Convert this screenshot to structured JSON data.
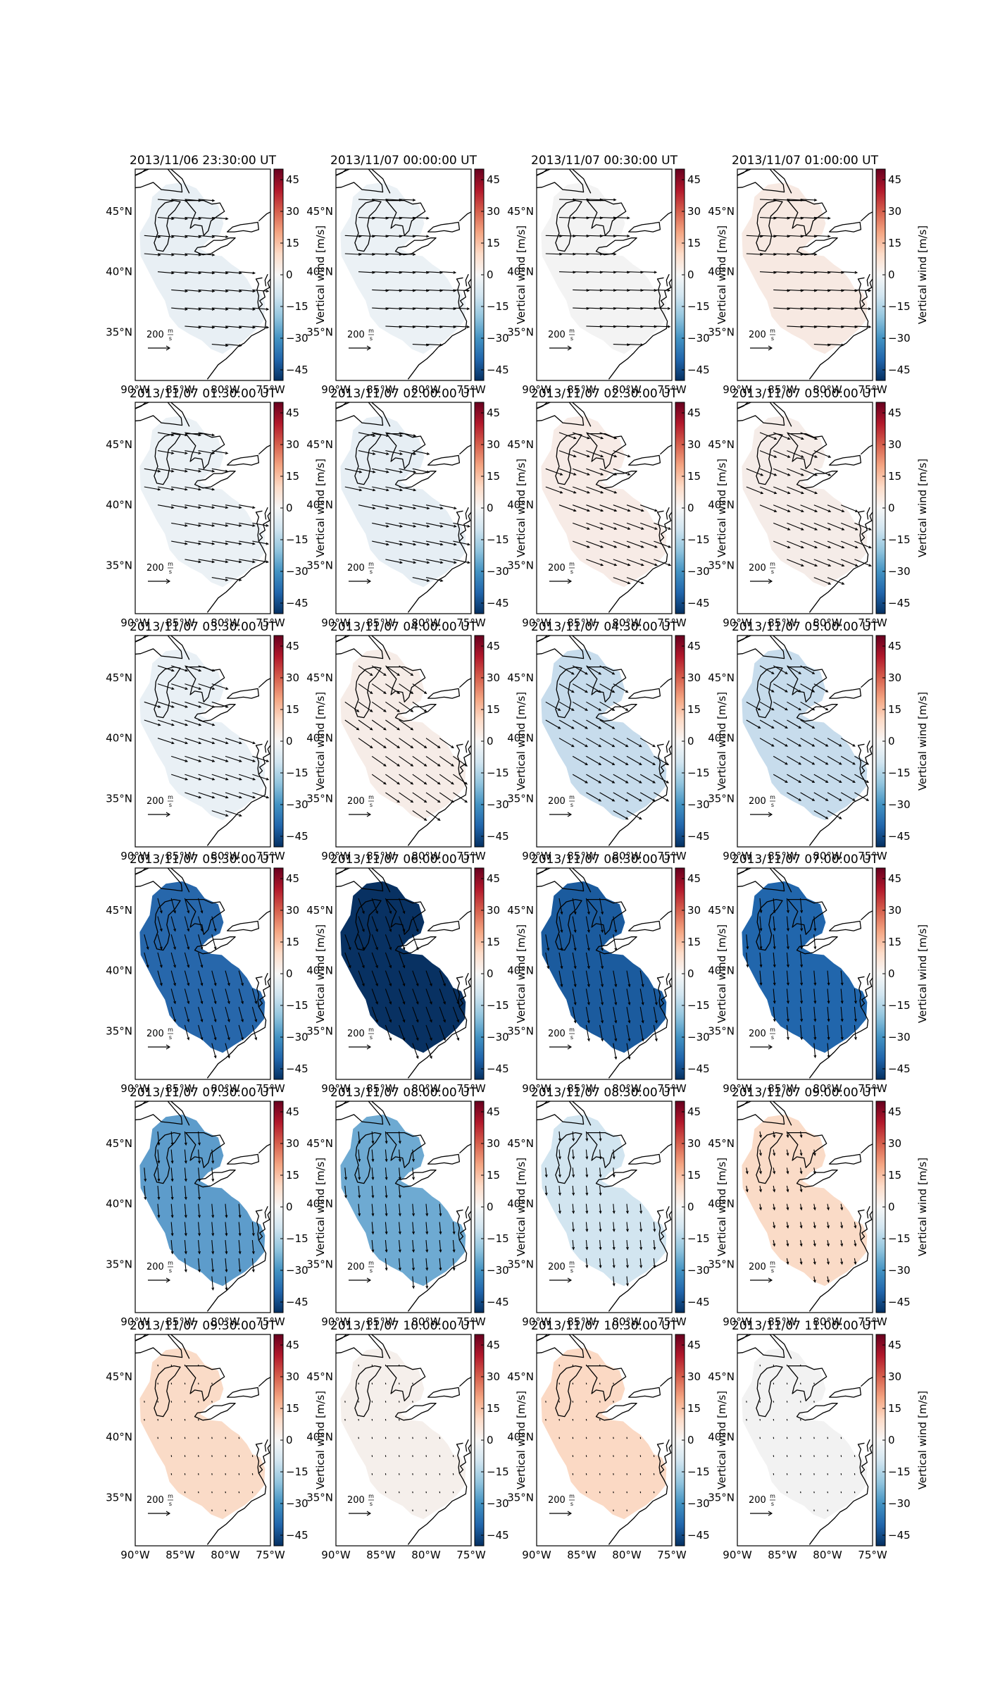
{
  "figure": {
    "panels": [
      {
        "timestamp": "2013/11/06 23:30:00 UT",
        "vertical_wind": -4,
        "fill": "#e8eff4",
        "vector_angle_deg": 5,
        "vector_scale": 0.95
      },
      {
        "timestamp": "2013/11/07 00:00:00 UT",
        "vertical_wind": -3,
        "fill": "#ebf1f5",
        "vector_angle_deg": 3,
        "vector_scale": 0.95
      },
      {
        "timestamp": "2013/11/07 00:30:00 UT",
        "vertical_wind": 0,
        "fill": "#f3f3f3",
        "vector_angle_deg": 2,
        "vector_scale": 0.95
      },
      {
        "timestamp": "2013/11/07 01:00:00 UT",
        "vertical_wind": 3,
        "fill": "#f7e9e2",
        "vector_angle_deg": 3,
        "vector_scale": 0.95
      },
      {
        "timestamp": "2013/11/07 01:30:00 UT",
        "vertical_wind": -3,
        "fill": "#ebf1f5",
        "vector_angle_deg": 10,
        "vector_scale": 0.95
      },
      {
        "timestamp": "2013/11/07 02:00:00 UT",
        "vertical_wind": -4,
        "fill": "#e6eef4",
        "vector_angle_deg": 12,
        "vector_scale": 1.0
      },
      {
        "timestamp": "2013/11/07 02:30:00 UT",
        "vertical_wind": 3,
        "fill": "#f7ebe6",
        "vector_angle_deg": 20,
        "vector_scale": 1.05
      },
      {
        "timestamp": "2013/11/07 03:00:00 UT",
        "vertical_wind": 2,
        "fill": "#f5ece8",
        "vector_angle_deg": 22,
        "vector_scale": 1.05
      },
      {
        "timestamp": "2013/11/07 03:30:00 UT",
        "vertical_wind": -3,
        "fill": "#e9f0f5",
        "vector_angle_deg": 18,
        "vector_scale": 1.0
      },
      {
        "timestamp": "2013/11/07 04:00:00 UT",
        "vertical_wind": 2,
        "fill": "#f6ece7",
        "vector_angle_deg": 35,
        "vector_scale": 1.0
      },
      {
        "timestamp": "2013/11/07 04:30:00 UT",
        "vertical_wind": -10,
        "fill": "#c7dcec",
        "vector_angle_deg": 30,
        "vector_scale": 1.0
      },
      {
        "timestamp": "2013/11/07 05:00:00 UT",
        "vertical_wind": -10,
        "fill": "#c7dcec",
        "vector_angle_deg": 30,
        "vector_scale": 0.95
      },
      {
        "timestamp": "2013/11/07 05:30:00 UT",
        "vertical_wind": -38,
        "fill": "#2767ab",
        "vector_angle_deg": 75,
        "vector_scale": 0.9
      },
      {
        "timestamp": "2013/11/07 06:00:00 UT",
        "vertical_wind": -50,
        "fill": "#083162",
        "vector_angle_deg": 70,
        "vector_scale": 0.95
      },
      {
        "timestamp": "2013/11/07 06:30:00 UT",
        "vertical_wind": -42,
        "fill": "#1b5b9e",
        "vector_angle_deg": 80,
        "vector_scale": 0.95
      },
      {
        "timestamp": "2013/11/07 07:00:00 UT",
        "vertical_wind": -38,
        "fill": "#2166ac",
        "vector_angle_deg": 85,
        "vector_scale": 0.85
      },
      {
        "timestamp": "2013/11/07 07:30:00 UT",
        "vertical_wind": -24,
        "fill": "#5d9ccb",
        "vector_angle_deg": 85,
        "vector_scale": 0.8
      },
      {
        "timestamp": "2013/11/07 08:00:00 UT",
        "vertical_wind": -20,
        "fill": "#6eaad2",
        "vector_angle_deg": 85,
        "vector_scale": 0.7
      },
      {
        "timestamp": "2013/11/07 08:30:00 UT",
        "vertical_wind": -7,
        "fill": "#d2e5f0",
        "vector_angle_deg": 85,
        "vector_scale": 0.55
      },
      {
        "timestamp": "2013/11/07 09:00:00 UT",
        "vertical_wind": 8,
        "fill": "#fadbc7",
        "vector_angle_deg": 80,
        "vector_scale": 0.35
      },
      {
        "timestamp": "2013/11/07 09:30:00 UT",
        "vertical_wind": 8,
        "fill": "#fadbc7",
        "vector_angle_deg": 80,
        "vector_scale": 0.1
      },
      {
        "timestamp": "2013/11/07 10:00:00 UT",
        "vertical_wind": 1,
        "fill": "#f5efeb",
        "vector_angle_deg": 80,
        "vector_scale": 0.1
      },
      {
        "timestamp": "2013/11/07 10:30:00 UT",
        "vertical_wind": 8,
        "fill": "#fbd9c4",
        "vector_angle_deg": 80,
        "vector_scale": 0.1
      },
      {
        "timestamp": "2013/11/07 11:00:00 UT",
        "vertical_wind": 0,
        "fill": "#f2f2f2",
        "vector_angle_deg": 80,
        "vector_scale": 0.1
      }
    ],
    "colorbar": {
      "label": "Vertical wind [m/s]",
      "ticks": [
        "45",
        "30",
        "15",
        "0",
        "−15",
        "−30",
        "−45"
      ],
      "range": [
        -50,
        50
      ],
      "stops": [
        "#053061",
        "#2166ac",
        "#4393c3",
        "#92c5de",
        "#d1e5f0",
        "#f7f7f7",
        "#fddbc7",
        "#f4a582",
        "#d6604d",
        "#b2182b",
        "#67001f"
      ]
    },
    "lat_ticks": [
      "45°N",
      "40°N",
      "35°N"
    ],
    "lon_ticks": [
      "90°W",
      "85°W",
      "80°W",
      "75°W"
    ],
    "scale_label": "200",
    "scale_unit_numerator": "m",
    "scale_unit_denominator": "s"
  }
}
